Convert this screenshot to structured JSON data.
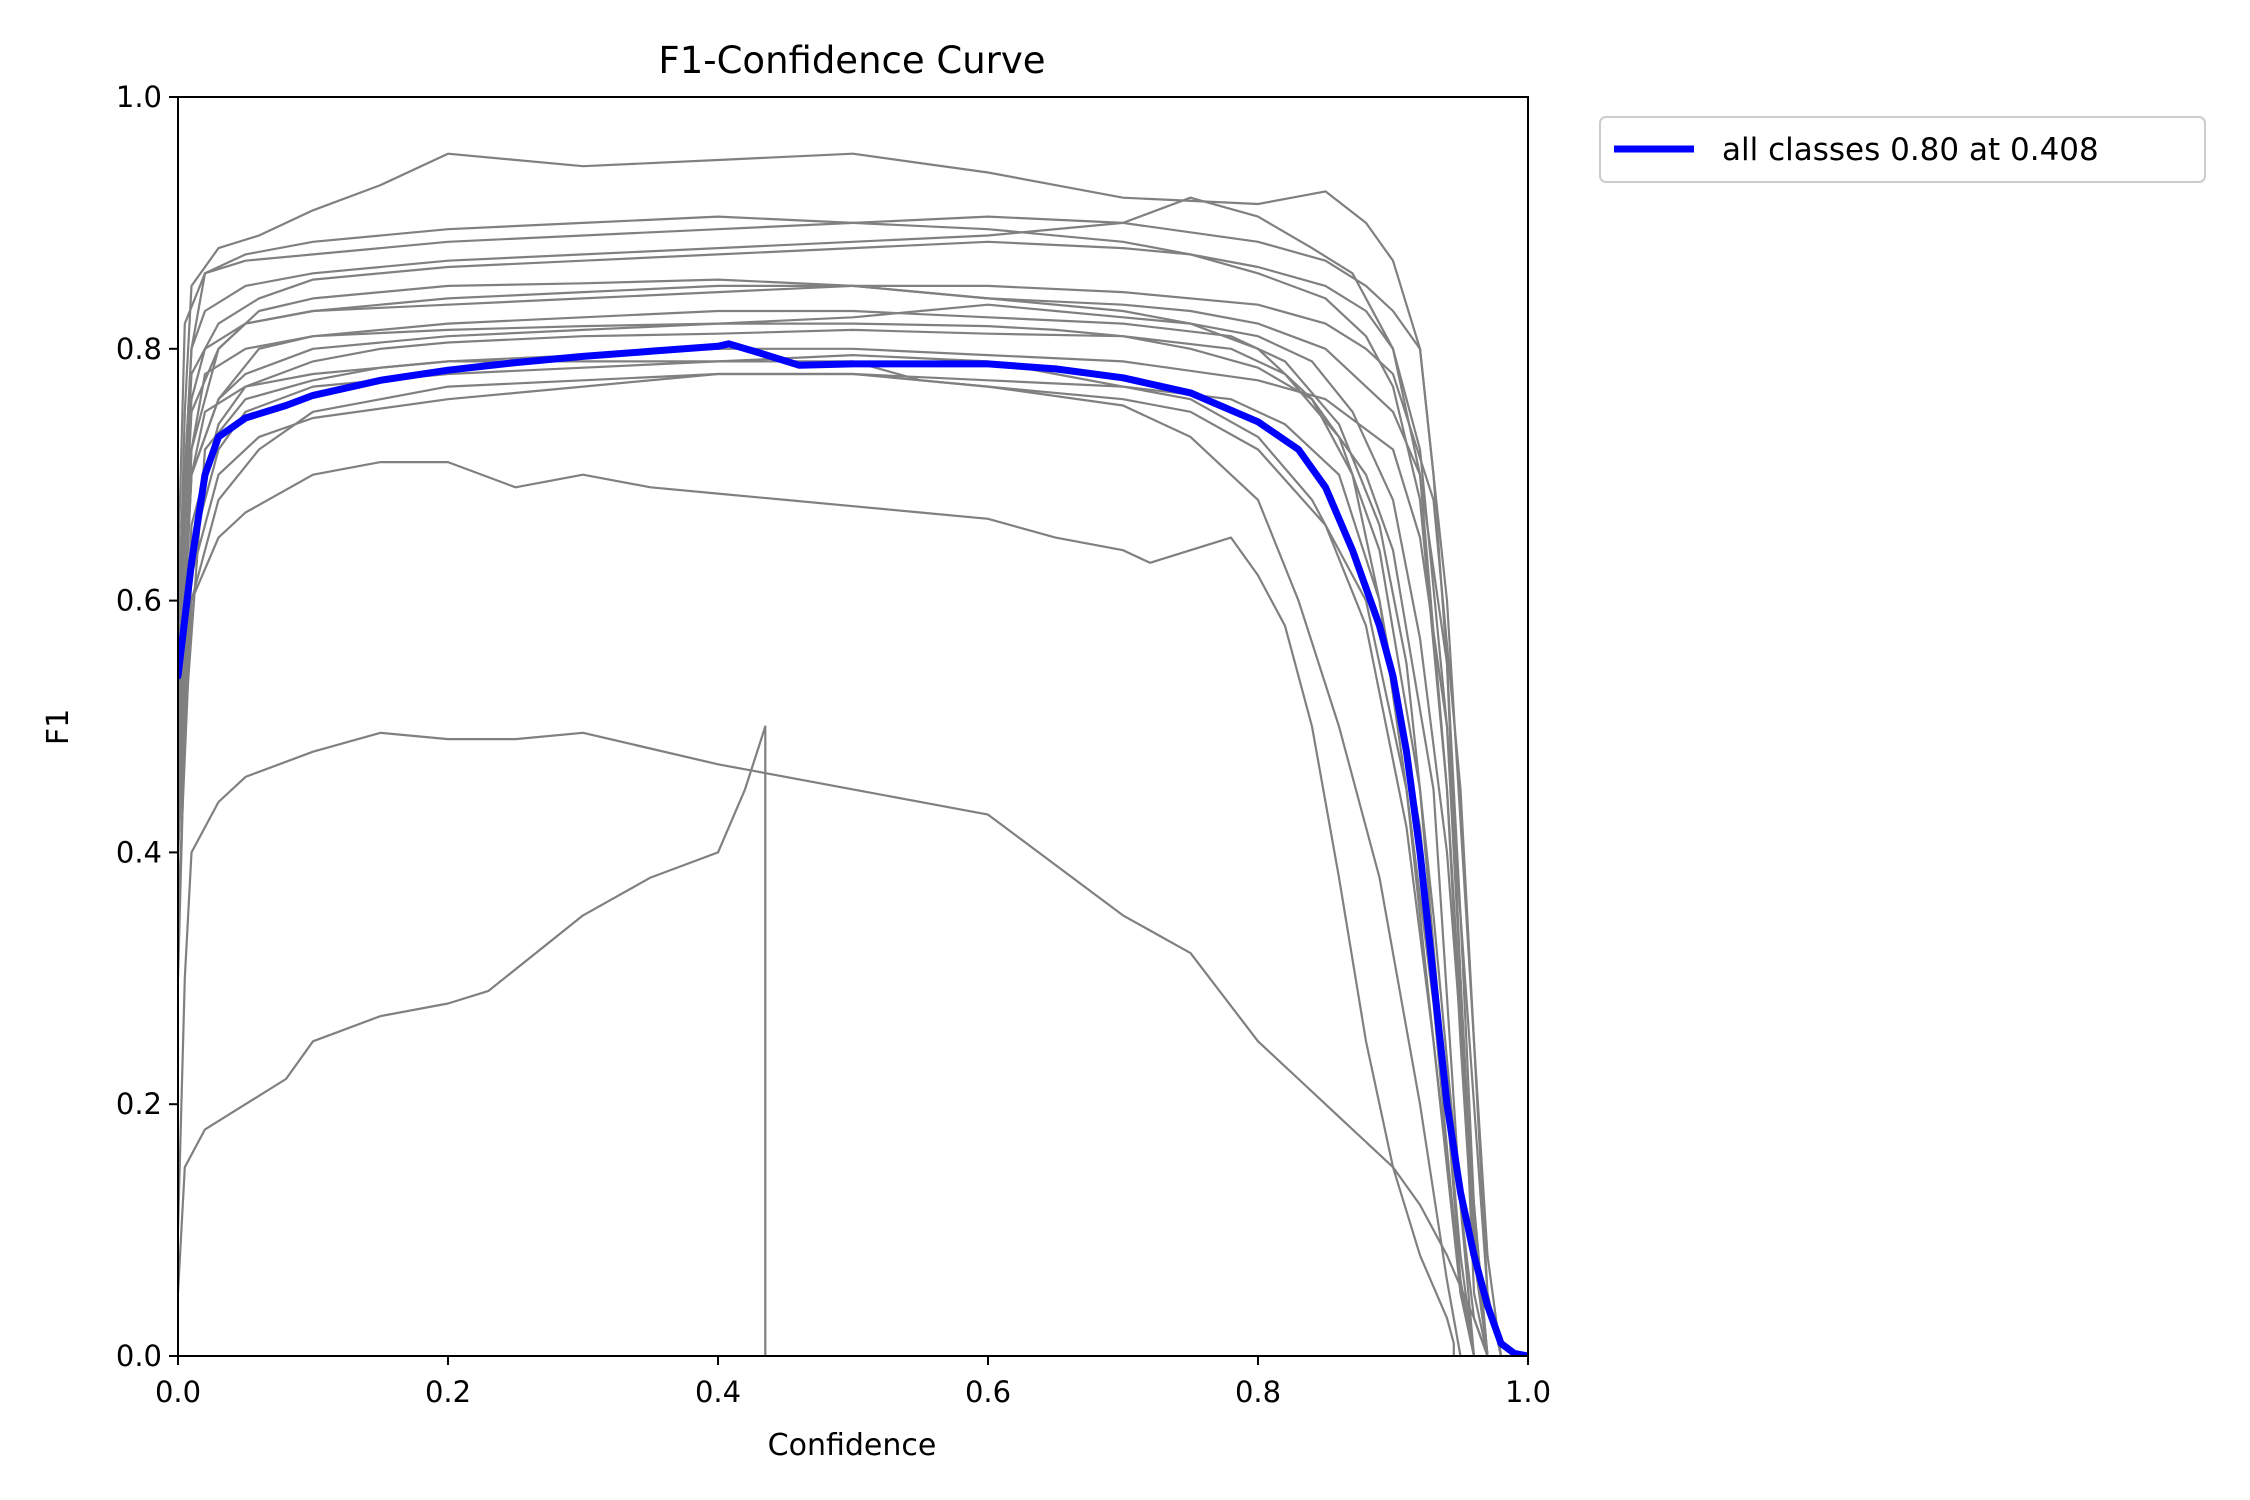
{
  "chart_data": {
    "type": "line",
    "title": "F1-Confidence Curve",
    "xlabel": "Confidence",
    "ylabel": "F1",
    "xlim": [
      0.0,
      1.0
    ],
    "ylim": [
      0.0,
      1.0
    ],
    "xticks": [
      0.0,
      0.2,
      0.4,
      0.6,
      0.8,
      1.0
    ],
    "yticks": [
      0.0,
      0.2,
      0.4,
      0.6,
      0.8,
      1.0
    ],
    "xtick_labels": [
      "0.0",
      "0.2",
      "0.4",
      "0.6",
      "0.8",
      "1.0"
    ],
    "ytick_labels": [
      "0.0",
      "0.2",
      "0.4",
      "0.6",
      "0.8",
      "1.0"
    ],
    "grid": false,
    "legend_position": "outside-top-right",
    "colors": {
      "class_curve": "#808080",
      "all_classes": "#0000ff",
      "axes": "#000000"
    },
    "series": [
      {
        "name": "all classes 0.80 at 0.408",
        "label": "all classes 0.80 at 0.408",
        "color": "#0000ff",
        "legend": true,
        "x": [
          0.0,
          0.01,
          0.02,
          0.03,
          0.05,
          0.08,
          0.1,
          0.15,
          0.2,
          0.25,
          0.3,
          0.35,
          0.4,
          0.408,
          0.43,
          0.46,
          0.5,
          0.55,
          0.6,
          0.65,
          0.7,
          0.75,
          0.8,
          0.83,
          0.85,
          0.87,
          0.89,
          0.9,
          0.91,
          0.92,
          0.93,
          0.94,
          0.95,
          0.96,
          0.97,
          0.98,
          0.99,
          1.0
        ],
        "y": [
          0.54,
          0.63,
          0.7,
          0.73,
          0.745,
          0.755,
          0.763,
          0.775,
          0.783,
          0.789,
          0.794,
          0.798,
          0.802,
          0.804,
          0.797,
          0.787,
          0.788,
          0.788,
          0.788,
          0.784,
          0.777,
          0.765,
          0.742,
          0.72,
          0.69,
          0.64,
          0.58,
          0.54,
          0.48,
          0.4,
          0.3,
          0.2,
          0.13,
          0.08,
          0.04,
          0.01,
          0.002,
          0.0
        ]
      },
      {
        "name": "class 1",
        "color": "#808080",
        "legend": false,
        "x": [
          0.0,
          0.005,
          0.01,
          0.03,
          0.06,
          0.1,
          0.15,
          0.2,
          0.3,
          0.4,
          0.5,
          0.6,
          0.7,
          0.8,
          0.85,
          0.88,
          0.9,
          0.92,
          0.94,
          0.96,
          0.97,
          0.98
        ],
        "y": [
          0.55,
          0.75,
          0.85,
          0.88,
          0.89,
          0.91,
          0.93,
          0.955,
          0.945,
          0.95,
          0.955,
          0.94,
          0.92,
          0.915,
          0.925,
          0.9,
          0.87,
          0.8,
          0.6,
          0.25,
          0.08,
          0.0
        ]
      },
      {
        "name": "class 2",
        "color": "#808080",
        "legend": false,
        "x": [
          0.0,
          0.01,
          0.02,
          0.05,
          0.1,
          0.2,
          0.3,
          0.4,
          0.5,
          0.6,
          0.7,
          0.75,
          0.8,
          0.85,
          0.88,
          0.9,
          0.92,
          0.94,
          0.95,
          0.96,
          0.97
        ],
        "y": [
          0.6,
          0.8,
          0.86,
          0.875,
          0.885,
          0.895,
          0.9,
          0.905,
          0.9,
          0.895,
          0.885,
          0.875,
          0.86,
          0.84,
          0.81,
          0.77,
          0.68,
          0.45,
          0.25,
          0.08,
          0.0
        ]
      },
      {
        "name": "class 3",
        "color": "#808080",
        "legend": false,
        "x": [
          0.0,
          0.01,
          0.03,
          0.06,
          0.1,
          0.2,
          0.3,
          0.4,
          0.5,
          0.6,
          0.7,
          0.75,
          0.8,
          0.84,
          0.87,
          0.89,
          0.91,
          0.93,
          0.95,
          0.96
        ],
        "y": [
          0.45,
          0.72,
          0.8,
          0.83,
          0.84,
          0.85,
          0.852,
          0.855,
          0.85,
          0.84,
          0.83,
          0.82,
          0.8,
          0.76,
          0.7,
          0.6,
          0.45,
          0.25,
          0.05,
          0.0
        ]
      },
      {
        "name": "class 4",
        "color": "#808080",
        "legend": false,
        "x": [
          0.0,
          0.01,
          0.03,
          0.06,
          0.1,
          0.2,
          0.3,
          0.4,
          0.5,
          0.6,
          0.7,
          0.78,
          0.82,
          0.86,
          0.89,
          0.91,
          0.93,
          0.95,
          0.96,
          0.97
        ],
        "y": [
          0.5,
          0.7,
          0.76,
          0.8,
          0.81,
          0.82,
          0.825,
          0.83,
          0.83,
          0.825,
          0.82,
          0.81,
          0.79,
          0.74,
          0.66,
          0.55,
          0.35,
          0.12,
          0.03,
          0.0
        ]
      },
      {
        "name": "class 5",
        "color": "#808080",
        "legend": false,
        "x": [
          0.0,
          0.01,
          0.03,
          0.06,
          0.1,
          0.15,
          0.2,
          0.3,
          0.4,
          0.5,
          0.6,
          0.7,
          0.75,
          0.8,
          0.83,
          0.86,
          0.89,
          0.92,
          0.94,
          0.95
        ],
        "y": [
          0.35,
          0.6,
          0.68,
          0.72,
          0.75,
          0.76,
          0.77,
          0.775,
          0.78,
          0.78,
          0.77,
          0.755,
          0.73,
          0.68,
          0.6,
          0.5,
          0.38,
          0.2,
          0.06,
          0.0
        ]
      },
      {
        "name": "class 6",
        "color": "#808080",
        "legend": false,
        "x": [
          0.0,
          0.005,
          0.02,
          0.05,
          0.1,
          0.15,
          0.2,
          0.3,
          0.4,
          0.5,
          0.6,
          0.7,
          0.8,
          0.85,
          0.9,
          0.92,
          0.94,
          0.96,
          0.97,
          0.98
        ],
        "y": [
          0.3,
          0.5,
          0.72,
          0.76,
          0.775,
          0.785,
          0.79,
          0.795,
          0.8,
          0.8,
          0.795,
          0.79,
          0.775,
          0.76,
          0.72,
          0.65,
          0.5,
          0.2,
          0.05,
          0.0
        ]
      },
      {
        "name": "class 7",
        "color": "#808080",
        "legend": false,
        "x": [
          0.0,
          0.005,
          0.01,
          0.03,
          0.05,
          0.1,
          0.15,
          0.2,
          0.25,
          0.3,
          0.4,
          0.5,
          0.6,
          0.7,
          0.75,
          0.8,
          0.83,
          0.86,
          0.88,
          0.9,
          0.92,
          0.94,
          0.96,
          0.97
        ],
        "y": [
          0.1,
          0.3,
          0.4,
          0.44,
          0.46,
          0.48,
          0.495,
          0.49,
          0.49,
          0.495,
          0.47,
          0.45,
          0.43,
          0.35,
          0.32,
          0.25,
          0.22,
          0.19,
          0.17,
          0.15,
          0.12,
          0.08,
          0.03,
          0.0
        ]
      },
      {
        "name": "class 8",
        "color": "#808080",
        "legend": false,
        "x": [
          0.0,
          0.005,
          0.02,
          0.05,
          0.08,
          0.1,
          0.15,
          0.2,
          0.23,
          0.3,
          0.35,
          0.4,
          0.42,
          0.435,
          0.435
        ],
        "y": [
          0.05,
          0.15,
          0.18,
          0.2,
          0.22,
          0.25,
          0.27,
          0.28,
          0.29,
          0.35,
          0.38,
          0.4,
          0.45,
          0.5,
          0.0
        ]
      },
      {
        "name": "class 9",
        "color": "#808080",
        "legend": false,
        "x": [
          0.0,
          0.01,
          0.03,
          0.05,
          0.1,
          0.15,
          0.2,
          0.25,
          0.3,
          0.35,
          0.4,
          0.45,
          0.5,
          0.55,
          0.6,
          0.65,
          0.7,
          0.72,
          0.75,
          0.78,
          0.8,
          0.82,
          0.84,
          0.86,
          0.88,
          0.9,
          0.92,
          0.94,
          0.945,
          0.945
        ],
        "y": [
          0.4,
          0.6,
          0.65,
          0.67,
          0.7,
          0.71,
          0.71,
          0.69,
          0.7,
          0.69,
          0.685,
          0.68,
          0.675,
          0.67,
          0.665,
          0.65,
          0.64,
          0.63,
          0.64,
          0.65,
          0.62,
          0.58,
          0.5,
          0.38,
          0.25,
          0.15,
          0.08,
          0.03,
          0.01,
          0.0
        ]
      },
      {
        "name": "class 10",
        "color": "#808080",
        "legend": false,
        "x": [
          0.0,
          0.01,
          0.03,
          0.05,
          0.1,
          0.2,
          0.3,
          0.4,
          0.5,
          0.6,
          0.7,
          0.75,
          0.8,
          0.85,
          0.9,
          0.92,
          0.94,
          0.95,
          0.96,
          0.97
        ],
        "y": [
          0.55,
          0.75,
          0.8,
          0.82,
          0.83,
          0.84,
          0.845,
          0.85,
          0.85,
          0.84,
          0.835,
          0.83,
          0.82,
          0.8,
          0.75,
          0.7,
          0.55,
          0.35,
          0.12,
          0.0
        ]
      },
      {
        "name": "class 11",
        "color": "#808080",
        "legend": false,
        "x": [
          0.0,
          0.01,
          0.02,
          0.05,
          0.1,
          0.15,
          0.2,
          0.3,
          0.4,
          0.5,
          0.6,
          0.65,
          0.7,
          0.75,
          0.8,
          0.84,
          0.88,
          0.91,
          0.93,
          0.95,
          0.96
        ],
        "y": [
          0.5,
          0.7,
          0.75,
          0.77,
          0.78,
          0.785,
          0.79,
          0.79,
          0.79,
          0.795,
          0.79,
          0.78,
          0.77,
          0.76,
          0.73,
          0.68,
          0.6,
          0.45,
          0.28,
          0.05,
          0.0
        ]
      },
      {
        "name": "class 12",
        "color": "#808080",
        "legend": false,
        "x": [
          0.0,
          0.005,
          0.02,
          0.05,
          0.1,
          0.2,
          0.3,
          0.4,
          0.5,
          0.6,
          0.7,
          0.8,
          0.85,
          0.88,
          0.9,
          0.92,
          0.93,
          0.94,
          0.95,
          0.96,
          0.97
        ],
        "y": [
          0.62,
          0.82,
          0.86,
          0.87,
          0.875,
          0.885,
          0.89,
          0.895,
          0.9,
          0.905,
          0.9,
          0.885,
          0.87,
          0.85,
          0.83,
          0.8,
          0.7,
          0.55,
          0.3,
          0.05,
          0.0
        ]
      },
      {
        "name": "class 13",
        "color": "#808080",
        "legend": false,
        "x": [
          0.0,
          0.01,
          0.03,
          0.05,
          0.1,
          0.2,
          0.3,
          0.4,
          0.5,
          0.55,
          0.6,
          0.65,
          0.7,
          0.75,
          0.8,
          0.84,
          0.87,
          0.9,
          0.92,
          0.94,
          0.96,
          0.97
        ],
        "y": [
          0.48,
          0.7,
          0.76,
          0.78,
          0.8,
          0.81,
          0.815,
          0.82,
          0.825,
          0.83,
          0.835,
          0.83,
          0.825,
          0.82,
          0.81,
          0.79,
          0.75,
          0.68,
          0.57,
          0.4,
          0.12,
          0.0
        ]
      },
      {
        "name": "class 14",
        "color": "#808080",
        "legend": false,
        "x": [
          0.0,
          0.01,
          0.03,
          0.06,
          0.1,
          0.2,
          0.3,
          0.4,
          0.5,
          0.6,
          0.7,
          0.78,
          0.82,
          0.86,
          0.89,
          0.92,
          0.94,
          0.95,
          0.96
        ],
        "y": [
          0.4,
          0.62,
          0.7,
          0.73,
          0.745,
          0.76,
          0.77,
          0.78,
          0.78,
          0.775,
          0.77,
          0.76,
          0.74,
          0.7,
          0.6,
          0.42,
          0.2,
          0.08,
          0.0
        ]
      },
      {
        "name": "class 15",
        "color": "#808080",
        "legend": false,
        "x": [
          0.0,
          0.01,
          0.03,
          0.06,
          0.1,
          0.2,
          0.3,
          0.4,
          0.5,
          0.6,
          0.7,
          0.75,
          0.8,
          0.85,
          0.88,
          0.9,
          0.92,
          0.94,
          0.95,
          0.96,
          0.97
        ],
        "y": [
          0.58,
          0.78,
          0.82,
          0.84,
          0.855,
          0.865,
          0.87,
          0.875,
          0.88,
          0.885,
          0.88,
          0.875,
          0.865,
          0.85,
          0.83,
          0.8,
          0.72,
          0.5,
          0.3,
          0.1,
          0.0
        ]
      },
      {
        "name": "class 16",
        "color": "#808080",
        "legend": false,
        "x": [
          0.0,
          0.01,
          0.02,
          0.05,
          0.1,
          0.2,
          0.3,
          0.4,
          0.5,
          0.6,
          0.65,
          0.7,
          0.75,
          0.8,
          0.84,
          0.88,
          0.9,
          0.93,
          0.95,
          0.96
        ],
        "y": [
          0.52,
          0.72,
          0.78,
          0.8,
          0.81,
          0.815,
          0.818,
          0.82,
          0.82,
          0.818,
          0.815,
          0.81,
          0.8,
          0.785,
          0.76,
          0.7,
          0.64,
          0.45,
          0.12,
          0.0
        ]
      },
      {
        "name": "class 17",
        "color": "#808080",
        "legend": false,
        "x": [
          0.0,
          0.01,
          0.02,
          0.05,
          0.1,
          0.15,
          0.2,
          0.3,
          0.4,
          0.5,
          0.6,
          0.7,
          0.75,
          0.8,
          0.84,
          0.87,
          0.9,
          0.92,
          0.94,
          0.96,
          0.97
        ],
        "y": [
          0.6,
          0.8,
          0.83,
          0.85,
          0.86,
          0.865,
          0.87,
          0.875,
          0.88,
          0.885,
          0.89,
          0.9,
          0.92,
          0.905,
          0.88,
          0.86,
          0.8,
          0.7,
          0.45,
          0.1,
          0.0
        ]
      },
      {
        "name": "class 18",
        "color": "#808080",
        "legend": false,
        "x": [
          0.0,
          0.01,
          0.03,
          0.05,
          0.1,
          0.15,
          0.2,
          0.3,
          0.4,
          0.5,
          0.6,
          0.7,
          0.78,
          0.82,
          0.86,
          0.89,
          0.92,
          0.94,
          0.95,
          0.96
        ],
        "y": [
          0.45,
          0.66,
          0.74,
          0.77,
          0.79,
          0.8,
          0.805,
          0.81,
          0.812,
          0.815,
          0.812,
          0.81,
          0.8,
          0.78,
          0.73,
          0.64,
          0.45,
          0.2,
          0.06,
          0.0
        ]
      },
      {
        "name": "class 19",
        "color": "#808080",
        "legend": false,
        "x": [
          0.0,
          0.01,
          0.02,
          0.05,
          0.1,
          0.2,
          0.3,
          0.4,
          0.5,
          0.6,
          0.7,
          0.8,
          0.85,
          0.88,
          0.9,
          0.93,
          0.95,
          0.96,
          0.97,
          0.98
        ],
        "y": [
          0.58,
          0.76,
          0.8,
          0.82,
          0.83,
          0.835,
          0.84,
          0.845,
          0.85,
          0.85,
          0.845,
          0.835,
          0.82,
          0.8,
          0.78,
          0.68,
          0.45,
          0.25,
          0.05,
          0.0
        ]
      },
      {
        "name": "class 20",
        "color": "#808080",
        "legend": false,
        "x": [
          0.0,
          0.01,
          0.03,
          0.05,
          0.1,
          0.2,
          0.3,
          0.4,
          0.5,
          0.55,
          0.6,
          0.7,
          0.75,
          0.8,
          0.85,
          0.88,
          0.91,
          0.93,
          0.95,
          0.96
        ],
        "y": [
          0.42,
          0.64,
          0.72,
          0.75,
          0.77,
          0.78,
          0.785,
          0.79,
          0.79,
          0.775,
          0.77,
          0.76,
          0.75,
          0.72,
          0.66,
          0.58,
          0.42,
          0.25,
          0.06,
          0.0
        ]
      }
    ]
  }
}
